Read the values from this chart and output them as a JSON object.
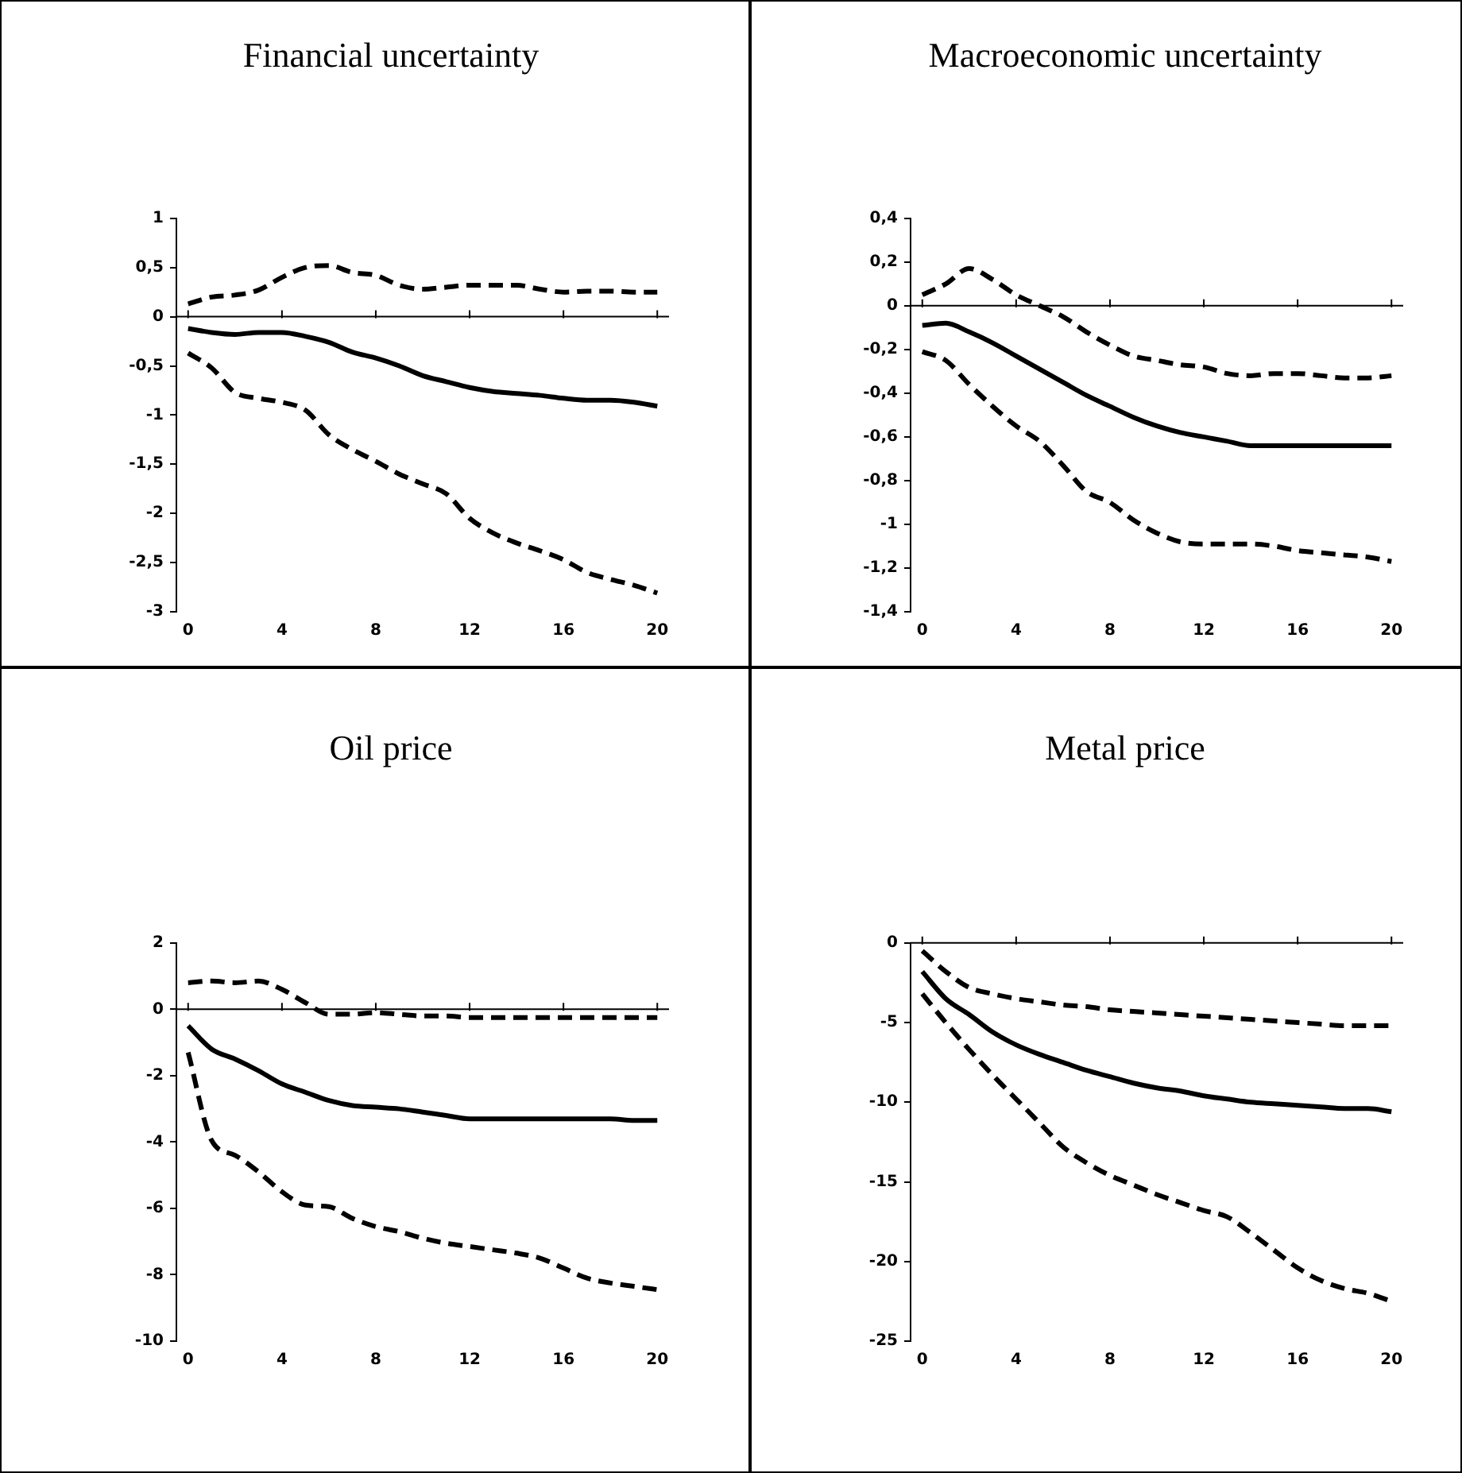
{
  "chart_data": [
    {
      "type": "line",
      "title": "Financial uncertainty",
      "x": [
        0,
        1,
        2,
        3,
        4,
        5,
        6,
        7,
        8,
        9,
        10,
        11,
        12,
        13,
        14,
        15,
        16,
        17,
        18,
        19,
        20
      ],
      "xlim": [
        -0.5,
        20.5
      ],
      "xticks": [
        0,
        4,
        8,
        12,
        16,
        20
      ],
      "ylim": [
        -3,
        1
      ],
      "yticks": [
        1,
        {
          "value": 0.5,
          "label": "0,5"
        },
        0,
        {
          "value": -0.5,
          "label": "-0,5"
        },
        -1,
        {
          "value": -1.5,
          "label": "-1,5"
        },
        -2,
        {
          "value": -2.5,
          "label": "-2,5"
        },
        -3
      ],
      "grid": false,
      "legend": false,
      "marker": "none",
      "ref_lines": [
        {
          "axis": "y",
          "value": 0,
          "color": "#000000"
        }
      ],
      "series": [
        {
          "color": "#000000",
          "line_style": "dashed",
          "values": [
            0.13,
            0.2,
            0.22,
            0.27,
            0.4,
            0.5,
            0.52,
            0.45,
            0.42,
            0.32,
            0.28,
            0.3,
            0.32,
            0.32,
            0.32,
            0.28,
            0.25,
            0.26,
            0.26,
            0.25,
            0.25
          ]
        },
        {
          "color": "#000000",
          "line_style": "solid",
          "values": [
            -0.12,
            -0.16,
            -0.18,
            -0.16,
            -0.16,
            -0.2,
            -0.26,
            -0.36,
            -0.42,
            -0.5,
            -0.6,
            -0.66,
            -0.72,
            -0.76,
            -0.78,
            -0.8,
            -0.83,
            -0.85,
            -0.85,
            -0.87,
            -0.91
          ]
        },
        {
          "color": "#000000",
          "line_style": "dashed",
          "values": [
            -0.37,
            -0.52,
            -0.77,
            -0.83,
            -0.87,
            -0.95,
            -1.2,
            -1.35,
            -1.47,
            -1.6,
            -1.7,
            -1.8,
            -2.05,
            -2.2,
            -2.3,
            -2.38,
            -2.47,
            -2.6,
            -2.67,
            -2.73,
            -2.81
          ]
        }
      ]
    },
    {
      "type": "line",
      "title": "Macroeconomic uncertainty",
      "x": [
        0,
        1,
        2,
        3,
        4,
        5,
        6,
        7,
        8,
        9,
        10,
        11,
        12,
        13,
        14,
        15,
        16,
        17,
        18,
        19,
        20
      ],
      "xlim": [
        -0.5,
        20.5
      ],
      "xticks": [
        0,
        4,
        8,
        12,
        16,
        20
      ],
      "ylim": [
        -1.4,
        0.4
      ],
      "yticks": [
        {
          "value": 0.4,
          "label": "0,4"
        },
        {
          "value": 0.2,
          "label": "0,2"
        },
        0,
        {
          "value": -0.2,
          "label": "-0,2"
        },
        {
          "value": -0.4,
          "label": "-0,4"
        },
        {
          "value": -0.6,
          "label": "-0,6"
        },
        {
          "value": -0.8,
          "label": "-0,8"
        },
        -1,
        {
          "value": -1.2,
          "label": "-1,2"
        },
        {
          "value": -1.4,
          "label": "-1,4"
        }
      ],
      "grid": false,
      "legend": false,
      "marker": "none",
      "ref_lines": [
        {
          "axis": "y",
          "value": 0,
          "color": "#000000"
        }
      ],
      "series": [
        {
          "color": "#000000",
          "line_style": "dashed",
          "values": [
            0.05,
            0.1,
            0.17,
            0.12,
            0.05,
            0.0,
            -0.05,
            -0.12,
            -0.18,
            -0.23,
            -0.25,
            -0.27,
            -0.28,
            -0.31,
            -0.32,
            -0.31,
            -0.31,
            -0.32,
            -0.33,
            -0.33,
            -0.32
          ]
        },
        {
          "color": "#000000",
          "line_style": "solid",
          "values": [
            -0.09,
            -0.08,
            -0.12,
            -0.17,
            -0.23,
            -0.29,
            -0.35,
            -0.41,
            -0.46,
            -0.51,
            -0.55,
            -0.58,
            -0.6,
            -0.62,
            -0.64,
            -0.64,
            -0.64,
            -0.64,
            -0.64,
            -0.64,
            -0.64
          ]
        },
        {
          "color": "#000000",
          "line_style": "dashed",
          "values": [
            -0.21,
            -0.25,
            -0.36,
            -0.46,
            -0.55,
            -0.62,
            -0.73,
            -0.85,
            -0.9,
            -0.98,
            -1.04,
            -1.08,
            -1.09,
            -1.09,
            -1.09,
            -1.1,
            -1.12,
            -1.13,
            -1.14,
            -1.15,
            -1.17
          ]
        }
      ]
    },
    {
      "type": "line",
      "title": "Oil price",
      "x": [
        0,
        1,
        2,
        3,
        4,
        5,
        6,
        7,
        8,
        9,
        10,
        11,
        12,
        13,
        14,
        15,
        16,
        17,
        18,
        19,
        20
      ],
      "xlim": [
        -0.5,
        20.5
      ],
      "xticks": [
        0,
        4,
        8,
        12,
        16,
        20
      ],
      "ylim": [
        -10,
        2
      ],
      "yticks": [
        2,
        0,
        -2,
        -4,
        -6,
        -8,
        -10
      ],
      "grid": false,
      "legend": false,
      "marker": "none",
      "ref_lines": [
        {
          "axis": "y",
          "value": 0,
          "color": "#000000"
        }
      ],
      "series": [
        {
          "color": "#000000",
          "line_style": "dashed",
          "values": [
            0.8,
            0.85,
            0.8,
            0.85,
            0.6,
            0.2,
            -0.15,
            -0.15,
            -0.1,
            -0.15,
            -0.2,
            -0.2,
            -0.25,
            -0.25,
            -0.25,
            -0.25,
            -0.25,
            -0.25,
            -0.25,
            -0.25,
            -0.25
          ]
        },
        {
          "color": "#000000",
          "line_style": "solid",
          "values": [
            -0.5,
            -1.2,
            -1.5,
            -1.85,
            -2.25,
            -2.5,
            -2.75,
            -2.9,
            -2.95,
            -3.0,
            -3.1,
            -3.2,
            -3.3,
            -3.3,
            -3.3,
            -3.3,
            -3.3,
            -3.3,
            -3.3,
            -3.35,
            -3.35
          ]
        },
        {
          "color": "#000000",
          "line_style": "dashed",
          "values": [
            -1.3,
            -3.95,
            -4.4,
            -4.9,
            -5.5,
            -5.9,
            -5.95,
            -6.3,
            -6.55,
            -6.7,
            -6.9,
            -7.05,
            -7.15,
            -7.25,
            -7.35,
            -7.5,
            -7.8,
            -8.1,
            -8.25,
            -8.35,
            -8.45
          ]
        }
      ]
    },
    {
      "type": "line",
      "title": "Metal price",
      "x": [
        0,
        1,
        2,
        3,
        4,
        5,
        6,
        7,
        8,
        9,
        10,
        11,
        12,
        13,
        14,
        15,
        16,
        17,
        18,
        19,
        20
      ],
      "xlim": [
        -0.5,
        20.5
      ],
      "xticks": [
        0,
        4,
        8,
        12,
        16,
        20
      ],
      "ylim": [
        -25,
        0
      ],
      "yticks": [
        0,
        -5,
        -10,
        -15,
        -20,
        -25
      ],
      "grid": false,
      "legend": false,
      "marker": "none",
      "ref_lines": [
        {
          "axis": "y",
          "value": 0,
          "color": "#000000"
        }
      ],
      "series": [
        {
          "color": "#000000",
          "line_style": "dashed",
          "values": [
            -0.5,
            -1.8,
            -2.8,
            -3.2,
            -3.5,
            -3.7,
            -3.9,
            -4.0,
            -4.2,
            -4.3,
            -4.4,
            -4.5,
            -4.6,
            -4.7,
            -4.8,
            -4.9,
            -5.0,
            -5.1,
            -5.2,
            -5.2,
            -5.2
          ]
        },
        {
          "color": "#000000",
          "line_style": "solid",
          "values": [
            -1.8,
            -3.5,
            -4.5,
            -5.6,
            -6.4,
            -7.0,
            -7.5,
            -8.0,
            -8.4,
            -8.8,
            -9.1,
            -9.3,
            -9.6,
            -9.8,
            -10.0,
            -10.1,
            -10.2,
            -10.3,
            -10.4,
            -10.4,
            -10.6
          ]
        },
        {
          "color": "#000000",
          "line_style": "dashed",
          "values": [
            -3.2,
            -5.0,
            -6.7,
            -8.3,
            -9.8,
            -11.3,
            -12.8,
            -13.8,
            -14.6,
            -15.2,
            -15.8,
            -16.3,
            -16.8,
            -17.2,
            -18.2,
            -19.3,
            -20.4,
            -21.2,
            -21.7,
            -22.0,
            -22.5
          ]
        }
      ]
    }
  ]
}
